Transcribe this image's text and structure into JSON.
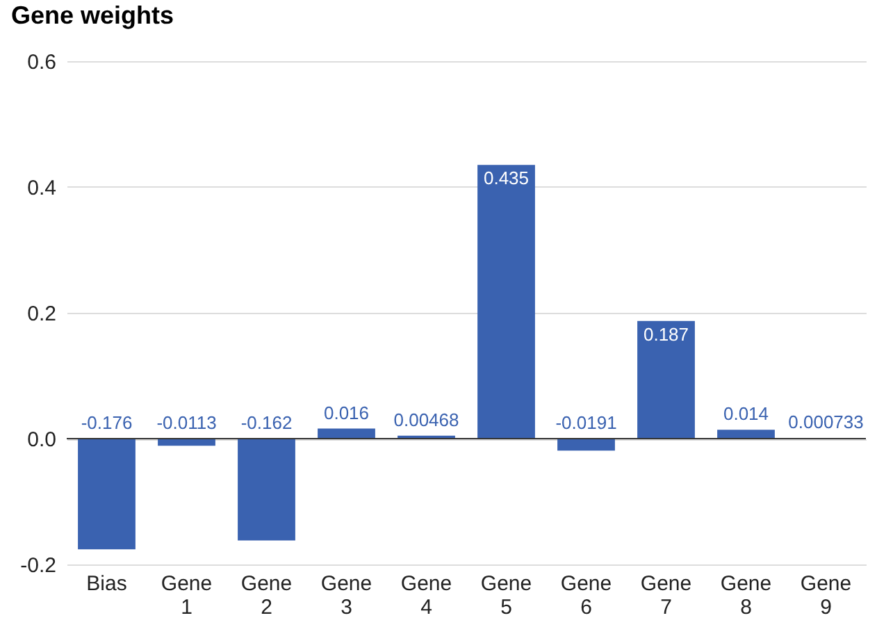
{
  "chart_data": {
    "type": "bar",
    "title": "Gene weights",
    "categories": [
      "Bias",
      "Gene 1",
      "Gene 2",
      "Gene 3",
      "Gene 4",
      "Gene 5",
      "Gene 6",
      "Gene 7",
      "Gene 8",
      "Gene 9"
    ],
    "values": [
      -0.176,
      -0.0113,
      -0.162,
      0.016,
      0.00468,
      0.435,
      -0.0191,
      0.187,
      0.014,
      0.000733
    ],
    "color": "#3a62b0",
    "ylim": [
      -0.2,
      0.6
    ],
    "yticks": [
      {
        "value": -0.2,
        "label": "-0.2"
      },
      {
        "value": 0,
        "label": "0.0"
      },
      {
        "value": 0.2,
        "label": "0.2"
      },
      {
        "value": 0.4,
        "label": "0.4"
      },
      {
        "value": 0.6,
        "label": "0.6"
      }
    ],
    "grid": "y",
    "data_labels": true
  }
}
